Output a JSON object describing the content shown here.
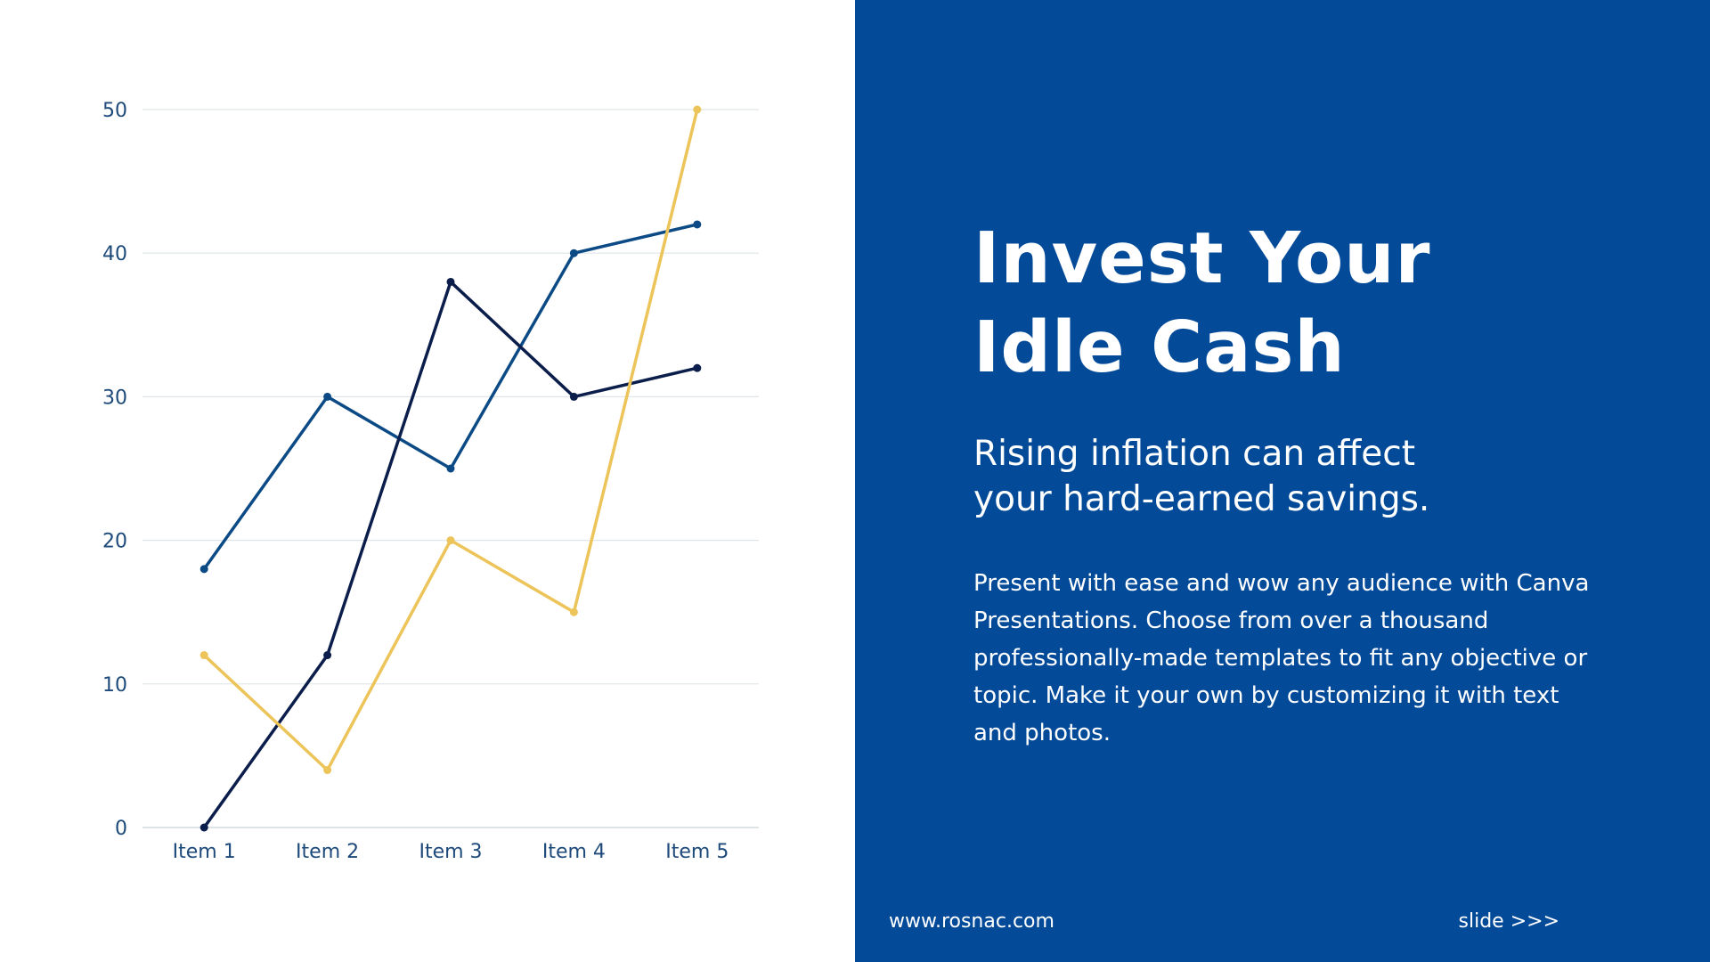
{
  "slide": {
    "title_line1": "Invest Your",
    "title_line2": "Idle Cash",
    "subtitle_line1": "Rising inflation can affect",
    "subtitle_line2": "your hard-earned savings.",
    "body": "Present with ease and wow any audience with Canva Presentations. Choose from over a thousand professionally-made templates to fit any objective or topic. Make it your own by customizing it with text and photos.",
    "website": "www.rosnac.com",
    "next_link": "slide >>>"
  },
  "colors": {
    "panel": "#034a98",
    "series_1": "#0c4a86",
    "series_2": "#0b1d4a",
    "series_3": "#ecc45a",
    "axis_text": "#1d4a7a",
    "gridline": "#dfe5e8"
  },
  "chart_data": {
    "type": "line",
    "categories": [
      "Item 1",
      "Item 2",
      "Item 3",
      "Item 4",
      "Item 5"
    ],
    "series": [
      {
        "values": [
          18,
          30,
          25,
          40,
          42
        ],
        "color": "#0c4a86"
      },
      {
        "values": [
          0,
          12,
          38,
          30,
          32
        ],
        "color": "#0b1d4a"
      },
      {
        "values": [
          12,
          4,
          20,
          15,
          50
        ],
        "color": "#ecc45a"
      }
    ],
    "yticks": [
      0,
      10,
      20,
      30,
      40,
      50
    ],
    "ylim": [
      0,
      50
    ],
    "grid": true,
    "legend": false
  }
}
